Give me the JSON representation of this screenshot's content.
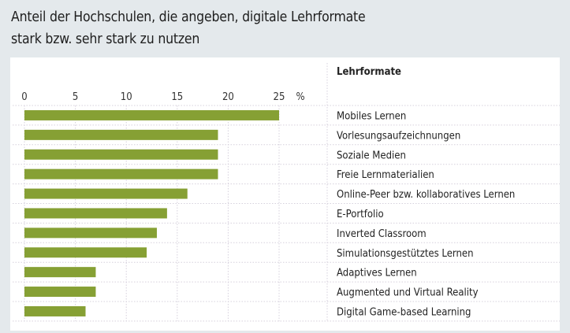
{
  "title": {
    "line1": "Anteil der Hochschulen, die angeben, digitale Lehrformate",
    "line2": "stark bzw. sehr stark zu nutzen"
  },
  "colors": {
    "bar": "#86a034",
    "background": "#e4e9ec",
    "panel": "#ffffff",
    "grid": "#d6d0dc"
  },
  "chart_data": {
    "type": "bar",
    "orientation": "horizontal",
    "title": "Anteil der Hochschulen, die angeben, digitale Lehrformate stark bzw. sehr stark zu nutzen",
    "category_header": "Lehrformate",
    "unit_label": "%",
    "xlim": [
      0,
      25
    ],
    "xticks": [
      0,
      5,
      10,
      15,
      20,
      25
    ],
    "grid": true,
    "categories": [
      "Mobiles Lernen",
      "Vorlesungsaufzeichnungen",
      "Soziale Medien",
      "Freie Lernmaterialien",
      "Online-Peer bzw. kollaboratives Lernen",
      "E-Portfolio",
      "Inverted Classroom",
      "Simulationsgestütztes Lernen",
      "Adaptives Lernen",
      "Augmented und Virtual Reality",
      "Digital Game-based Learning"
    ],
    "values": [
      25,
      19,
      19,
      19,
      16,
      14,
      13,
      12,
      7,
      7,
      6
    ]
  }
}
